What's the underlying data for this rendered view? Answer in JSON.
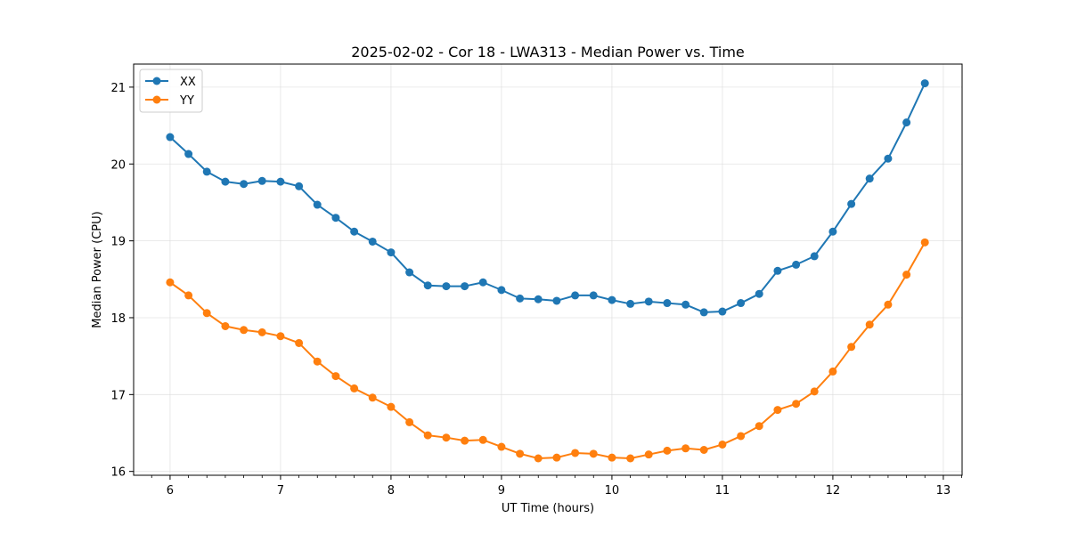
{
  "chart_data": {
    "type": "line",
    "title": "2025-02-02 - Cor 18 - LWA313 - Median Power vs. Time",
    "xlabel": "UT Time (hours)",
    "ylabel": "Median Power (CPU)",
    "xlim": [
      5.67,
      13.17
    ],
    "ylim": [
      15.95,
      21.3
    ],
    "xticks": [
      6,
      7,
      8,
      9,
      10,
      11,
      12,
      13
    ],
    "yticks": [
      16,
      17,
      18,
      19,
      20,
      21
    ],
    "grid": true,
    "legend_position": "top-left",
    "x": [
      6.0,
      6.167,
      6.333,
      6.5,
      6.667,
      6.833,
      7.0,
      7.167,
      7.333,
      7.5,
      7.667,
      7.833,
      8.0,
      8.167,
      8.333,
      8.5,
      8.667,
      8.833,
      9.0,
      9.167,
      9.333,
      9.5,
      9.667,
      9.833,
      10.0,
      10.167,
      10.333,
      10.5,
      10.667,
      10.833,
      11.0,
      11.167,
      11.333,
      11.5,
      11.667,
      11.833,
      12.0,
      12.167,
      12.333,
      12.5,
      12.667,
      12.833
    ],
    "series": [
      {
        "name": "XX",
        "color": "#1f77b4",
        "values": [
          20.35,
          20.13,
          19.9,
          19.77,
          19.74,
          19.78,
          19.77,
          19.71,
          19.47,
          19.3,
          19.12,
          18.99,
          18.85,
          18.59,
          18.42,
          18.41,
          18.41,
          18.46,
          18.36,
          18.25,
          18.24,
          18.22,
          18.29,
          18.29,
          18.23,
          18.18,
          18.21,
          18.19,
          18.17,
          18.07,
          18.08,
          18.19,
          18.31,
          18.61,
          18.69,
          18.8,
          19.12,
          19.48,
          19.81,
          20.07,
          20.54,
          21.05
        ]
      },
      {
        "name": "YY",
        "color": "#ff7f0e",
        "values": [
          18.46,
          18.29,
          18.06,
          17.89,
          17.84,
          17.81,
          17.76,
          17.67,
          17.43,
          17.24,
          17.08,
          16.96,
          16.84,
          16.64,
          16.47,
          16.44,
          16.4,
          16.41,
          16.32,
          16.23,
          16.17,
          16.18,
          16.24,
          16.23,
          16.18,
          16.17,
          16.22,
          16.27,
          16.3,
          16.28,
          16.35,
          16.46,
          16.59,
          16.8,
          16.88,
          17.04,
          17.3,
          17.62,
          17.91,
          18.17,
          18.56,
          18.98
        ]
      }
    ]
  }
}
